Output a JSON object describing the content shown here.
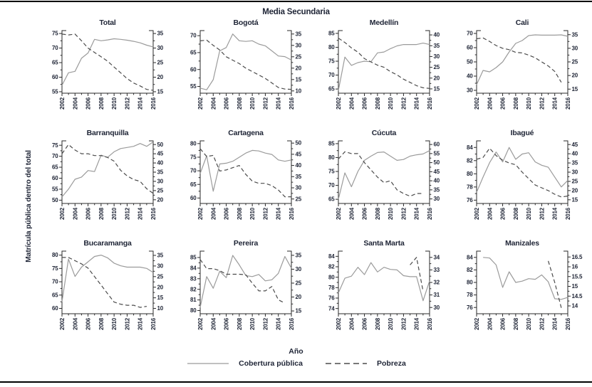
{
  "colors": {
    "cobertura_line": "#9b9b9b",
    "pobreza_line": "#4b4b4b",
    "axis": "#2a2a2a",
    "text": "#202637"
  },
  "chart_data": {
    "type": "line",
    "layout": "3x4-grid",
    "title": "Media Secundaria",
    "ylabel": "Matrícula pública dentro del total",
    "xlabel": "Año",
    "legend": [
      {
        "label": "Cobertura pública",
        "style": "solid"
      },
      {
        "label": "Pobreza",
        "style": "dashed"
      }
    ],
    "x": [
      2002,
      2003,
      2004,
      2005,
      2006,
      2007,
      2008,
      2009,
      2010,
      2011,
      2012,
      2013,
      2014,
      2015,
      2016
    ],
    "x_tick_labels": [
      2002,
      2004,
      2006,
      2008,
      2010,
      2012,
      2014,
      2016
    ],
    "panels": [
      {
        "title": "Total",
        "left_axis": {
          "ticks": [
            55,
            60,
            65,
            70,
            75
          ],
          "ylim": [
            54.5,
            76
          ]
        },
        "right_axis": {
          "ticks": [
            15,
            20,
            25,
            30,
            35
          ],
          "ylim": [
            14.5,
            36
          ]
        },
        "series": [
          {
            "name": "Cobertura pública",
            "axis": "left",
            "style": "solid",
            "values": [
              57.2,
              61.5,
              62,
              66.5,
              68.3,
              73,
              72.5,
              72.8,
              73.2,
              73,
              72.7,
              72.3,
              71.8,
              71,
              70.4
            ]
          },
          {
            "name": "Pobreza",
            "axis": "right",
            "style": "dashed",
            "values": [
              34.8,
              34.5,
              34.8,
              32.5,
              30,
              28.5,
              27,
              25.5,
              23.5,
              21.5,
              19.5,
              18,
              17,
              15.8,
              15.5
            ]
          }
        ]
      },
      {
        "title": "Bogotá",
        "left_axis": {
          "ticks": [
            55,
            60,
            65,
            70
          ],
          "ylim": [
            53,
            71.5
          ]
        },
        "right_axis": {
          "ticks": [
            10,
            15,
            20,
            25,
            30,
            35
          ],
          "ylim": [
            9,
            36.5
          ]
        },
        "series": [
          {
            "name": "Cobertura pública",
            "axis": "left",
            "style": "solid",
            "values": [
              54.5,
              54,
              57,
              65.5,
              66.5,
              70.5,
              68.5,
              68.3,
              68.5,
              67.5,
              67,
              65.5,
              64,
              63.8,
              62.8
            ]
          },
          {
            "name": "Pobreza",
            "axis": "right",
            "style": "dashed",
            "values": [
              32,
              32.3,
              30,
              28,
              25,
              23.5,
              22,
              20,
              18.5,
              17,
              15.5,
              13.5,
              11.5,
              10.8,
              10.7
            ]
          }
        ]
      },
      {
        "title": "Medellín",
        "left_axis": {
          "ticks": [
            65,
            70,
            75,
            80,
            85
          ],
          "ylim": [
            63.5,
            86
          ]
        },
        "right_axis": {
          "ticks": [
            15,
            20,
            25,
            30,
            35,
            40
          ],
          "ylim": [
            13,
            42
          ]
        },
        "series": [
          {
            "name": "Cobertura pública",
            "axis": "left",
            "style": "solid",
            "values": [
              64.5,
              76.5,
              73.5,
              74.5,
              75,
              74.8,
              78,
              78.3,
              79.5,
              80.5,
              81,
              81,
              81,
              81.5,
              81
            ]
          },
          {
            "name": "Pobreza",
            "axis": "right",
            "style": "dashed",
            "values": [
              38.5,
              36.5,
              34,
              32,
              29,
              27.5,
              26,
              25,
              23,
              21.5,
              19.5,
              18,
              16.5,
              15.5,
              15.2
            ]
          }
        ]
      },
      {
        "title": "Cali",
        "left_axis": {
          "ticks": [
            30,
            40,
            50,
            60,
            70
          ],
          "ylim": [
            28,
            72
          ]
        },
        "right_axis": {
          "ticks": [
            15,
            20,
            25,
            30,
            35
          ],
          "ylim": [
            13.5,
            36.5
          ]
        },
        "series": [
          {
            "name": "Cobertura pública",
            "axis": "left",
            "style": "solid",
            "values": [
              34,
              44,
              43,
              46,
              50,
              57,
              63,
              65,
              68.5,
              69,
              68.8,
              68.8,
              68.8,
              69,
              68
            ]
          },
          {
            "name": "Pobreza",
            "axis": "right",
            "style": "dashed",
            "values": [
              33.5,
              33.8,
              32.5,
              31,
              30,
              29.5,
              28.5,
              28.3,
              27.5,
              26.5,
              25,
              23.5,
              21.5,
              17.5,
              null
            ]
          }
        ]
      },
      {
        "title": "Barranquilla",
        "left_axis": {
          "ticks": [
            50,
            55,
            60,
            65,
            70,
            75
          ],
          "ylim": [
            48.5,
            77
          ]
        },
        "right_axis": {
          "ticks": [
            20,
            25,
            30,
            35,
            40,
            45,
            50
          ],
          "ylim": [
            18,
            52
          ]
        },
        "series": [
          {
            "name": "Cobertura pública",
            "axis": "left",
            "style": "solid",
            "values": [
              51.5,
              55,
              59.5,
              60.5,
              63.5,
              63,
              70.5,
              69.5,
              72,
              73.5,
              74,
              74.5,
              75.8,
              74.5,
              76.5
            ]
          },
          {
            "name": "Pobreza",
            "axis": "right",
            "style": "dashed",
            "values": [
              45,
              50,
              47,
              45,
              45,
              44,
              44,
              43,
              41,
              36,
              33,
              31,
              30,
              26,
              23.5
            ]
          }
        ]
      },
      {
        "title": "Cartagena",
        "left_axis": {
          "ticks": [
            60,
            65,
            70,
            75,
            80
          ],
          "ylim": [
            58,
            81
          ]
        },
        "right_axis": {
          "ticks": [
            25,
            30,
            35,
            40,
            45,
            50
          ],
          "ylim": [
            23,
            51
          ]
        },
        "series": [
          {
            "name": "Cobertura pública",
            "axis": "left",
            "style": "solid",
            "values": [
              69,
              75.5,
              62.5,
              72.5,
              72.8,
              73.5,
              75,
              76.5,
              77.5,
              77.3,
              76.5,
              76,
              74,
              73.5,
              74
            ]
          },
          {
            "name": "Pobreza",
            "axis": "right",
            "style": "dashed",
            "values": [
              47.5,
              44,
              44.5,
              37.5,
              38,
              39,
              40,
              36,
              33,
              32,
              32,
              31,
              29,
              26,
              26
            ]
          }
        ]
      },
      {
        "title": "Cúcuta",
        "left_axis": {
          "ticks": [
            65,
            70,
            75,
            80,
            85
          ],
          "ylim": [
            63.5,
            86
          ]
        },
        "right_axis": {
          "ticks": [
            30,
            35,
            40,
            45,
            50,
            55,
            60
          ],
          "ylim": [
            27.5,
            62
          ]
        },
        "series": [
          {
            "name": "Cobertura pública",
            "axis": "left",
            "style": "solid",
            "values": [
              65,
              74.5,
              69.5,
              75,
              79,
              80.5,
              81.8,
              82,
              80.5,
              79,
              79.3,
              80.5,
              81,
              81.3,
              82.5
            ]
          },
          {
            "name": "Pobreza",
            "axis": "right",
            "style": "dashed",
            "values": [
              52,
              56,
              55,
              55,
              50,
              46,
              42,
              39,
              40,
              35,
              33,
              31.5,
              33,
              33,
              null
            ]
          }
        ]
      },
      {
        "title": "Ibagué",
        "left_axis": {
          "ticks": [
            76,
            78,
            80,
            82,
            84
          ],
          "ylim": [
            75.5,
            85
          ]
        },
        "right_axis": {
          "ticks": [
            15,
            20,
            25,
            30,
            35,
            40,
            45
          ],
          "ylim": [
            13,
            47
          ]
        },
        "series": [
          {
            "name": "Cobertura pública",
            "axis": "left",
            "style": "solid",
            "values": [
              77.2,
              79.5,
              81.7,
              83.3,
              81.8,
              84,
              82.2,
              83,
              83.2,
              81.8,
              81.3,
              81,
              79.5,
              78,
              79
            ]
          },
          {
            "name": "Pobreza",
            "axis": "right",
            "style": "dashed",
            "values": [
              37,
              38,
              43,
              39,
              36.5,
              35,
              34,
              30,
              26.5,
              23,
              21.5,
              20,
              18,
              16.5,
              17
            ]
          }
        ]
      },
      {
        "title": "Bucaramanga",
        "left_axis": {
          "ticks": [
            60,
            65,
            70,
            75,
            80
          ],
          "ylim": [
            58,
            81.5
          ]
        },
        "right_axis": {
          "ticks": [
            10,
            15,
            20,
            25,
            30,
            35
          ],
          "ylim": [
            7.5,
            37
          ]
        },
        "series": [
          {
            "name": "Cobertura pública",
            "axis": "left",
            "style": "solid",
            "values": [
              62.5,
              78.5,
              72,
              75.5,
              77.5,
              79.5,
              80,
              79,
              77,
              76,
              75.5,
              75.5,
              75.5,
              75,
              73.5
            ]
          },
          {
            "name": "Pobreza",
            "axis": "right",
            "style": "dashed",
            "values": [
              34,
              34,
              32.5,
              31,
              29,
              25,
              21,
              17,
              13,
              12,
              11.5,
              11.5,
              10.5,
              11,
              null
            ]
          }
        ]
      },
      {
        "title": "Pereira",
        "left_axis": {
          "ticks": [
            80,
            81,
            82,
            83,
            84,
            85
          ],
          "ylim": [
            79.7,
            85.6
          ]
        },
        "right_axis": {
          "ticks": [
            15,
            20,
            25,
            30,
            35
          ],
          "ylim": [
            14,
            36.5
          ]
        },
        "series": [
          {
            "name": "Cobertura pública",
            "axis": "left",
            "style": "solid",
            "values": [
              80.3,
              83.2,
              82.1,
              83.7,
              83.1,
              85.2,
              84.3,
              83.3,
              83.2,
              83.4,
              82.8,
              82.9,
              83.5,
              85.1,
              84
            ]
          },
          {
            "name": "Pobreza",
            "axis": "right",
            "style": "dashed",
            "values": [
              33.5,
              30.2,
              30.2,
              29.5,
              28.2,
              28.2,
              28.2,
              28,
              25,
              22.2,
              22.2,
              23.8,
              19,
              17.8,
              null
            ]
          }
        ]
      },
      {
        "title": "Santa Marta",
        "left_axis": {
          "ticks": [
            74,
            76,
            78,
            80,
            82,
            84
          ],
          "ylim": [
            73,
            85
          ]
        },
        "right_axis": {
          "ticks": [
            30,
            31,
            32,
            33,
            34
          ],
          "ylim": [
            29.5,
            34.5
          ]
        },
        "series": [
          {
            "name": "Cobertura pública",
            "axis": "left",
            "style": "solid",
            "values": [
              77,
              79.8,
              80.2,
              81.9,
              80.5,
              82.8,
              81,
              81.9,
              81.5,
              81.4,
              80.3,
              80.1,
              80.1,
              75.5,
              79.3
            ]
          },
          {
            "name": "Pobreza",
            "axis": "right",
            "style": "dashed",
            "values": [
              null,
              null,
              null,
              null,
              null,
              null,
              null,
              null,
              null,
              null,
              null,
              33.4,
              34,
              31.3,
              null
            ]
          }
        ]
      },
      {
        "title": "Manizales",
        "left_axis": {
          "ticks": [
            76,
            78,
            80,
            82,
            84
          ],
          "ylim": [
            75,
            85
          ]
        },
        "right_axis": {
          "ticks": [
            14,
            14.5,
            15,
            15.5,
            16,
            16.5
          ],
          "ylim": [
            13.6,
            16.8
          ]
        },
        "series": [
          {
            "name": "Cobertura pública",
            "axis": "left",
            "style": "solid",
            "values": [
              null,
              84,
              83.9,
              82.8,
              79.2,
              81.7,
              80,
              80.2,
              80.6,
              80.5,
              81.2,
              80.1,
              77.4,
              77.3,
              77.6
            ]
          },
          {
            "name": "Pobreza",
            "axis": "right",
            "style": "dashed",
            "values": [
              null,
              null,
              null,
              null,
              null,
              null,
              null,
              null,
              null,
              null,
              null,
              16.3,
              15.2,
              13.9,
              null
            ]
          }
        ]
      }
    ]
  }
}
